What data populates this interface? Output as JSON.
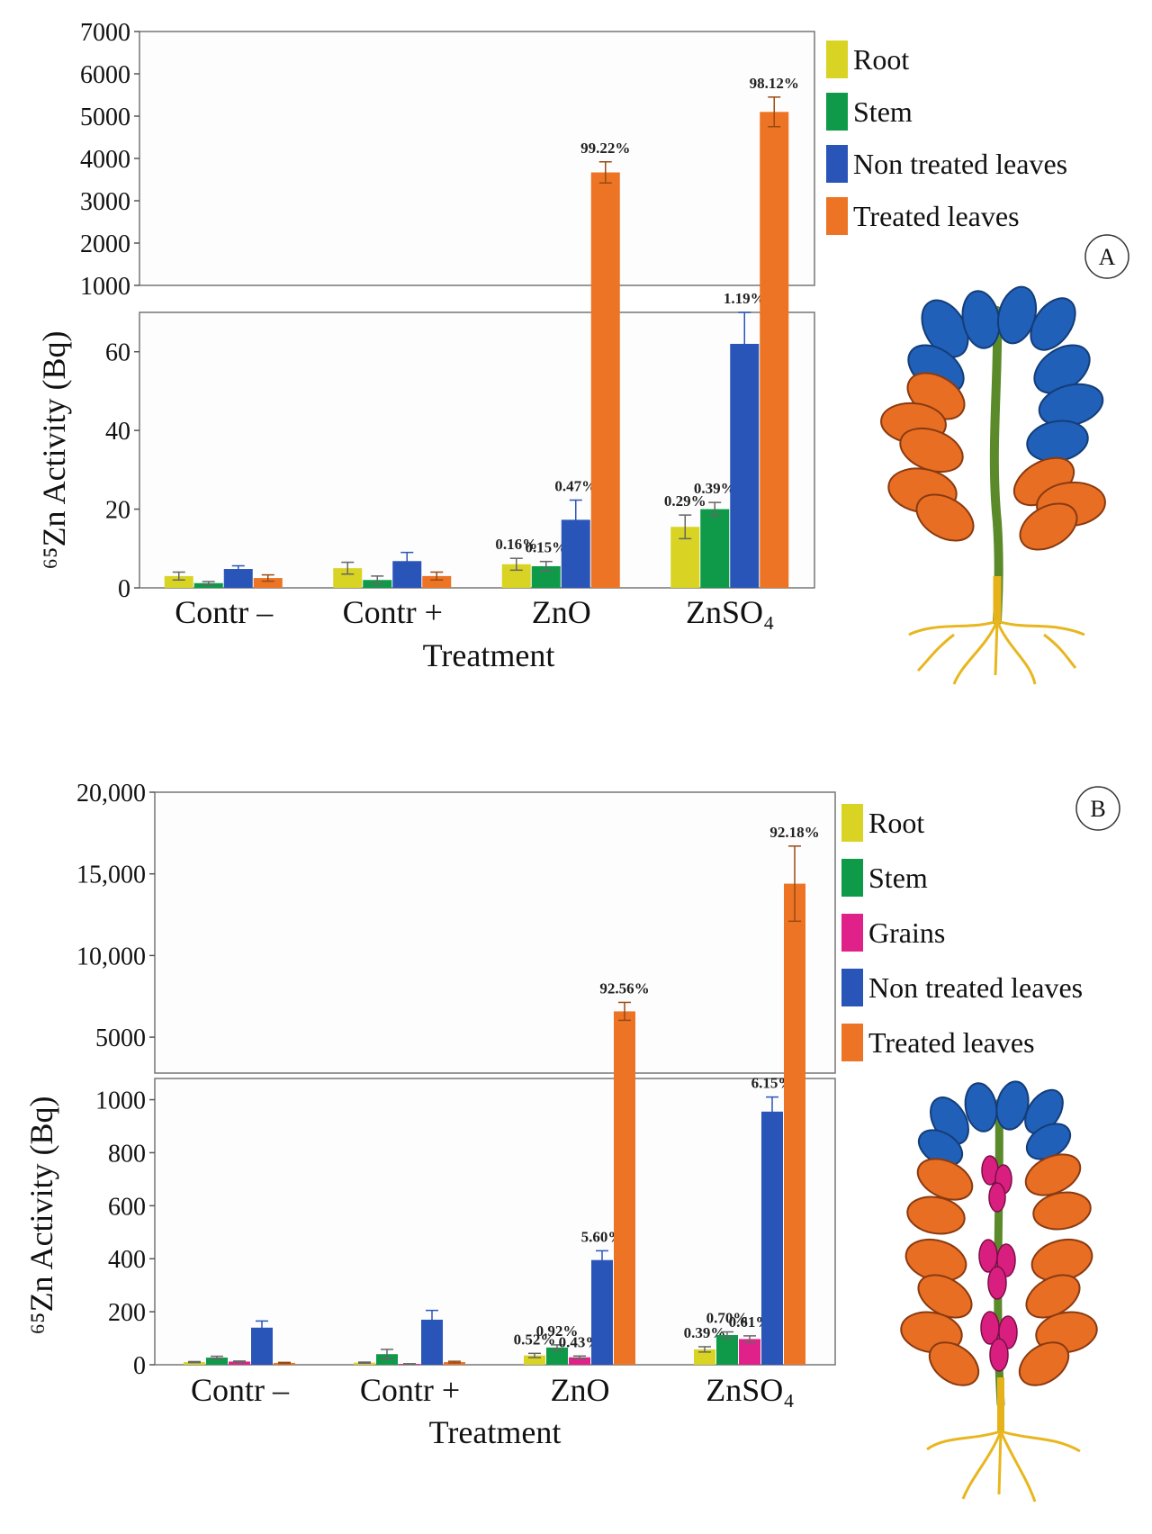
{
  "chart_data": [
    {
      "type": "bar",
      "panel": "A",
      "categories": [
        "Contr –",
        "Contr +",
        "ZnO",
        "ZnSO₄"
      ],
      "xlabel": "Treatment",
      "ylabel": "⁶⁵Zn Activity (Bq)",
      "broken_axis": {
        "lower_ylim": [
          0,
          70
        ],
        "upper_ylim": [
          1000,
          7000
        ]
      },
      "lower_ticks": [
        "0",
        "20",
        "40",
        "60"
      ],
      "upper_ticks": [
        "1000",
        "2000",
        "3000",
        "4000",
        "5000",
        "6000",
        "7000"
      ],
      "series": [
        {
          "name": "Root",
          "color": "#d9d423",
          "values": [
            3,
            5,
            6,
            15.5
          ],
          "errors": [
            1,
            1.5,
            1.5,
            3
          ],
          "labels": [
            "",
            "",
            "0.16%",
            "0.29%"
          ]
        },
        {
          "name": "Stem",
          "color": "#0e9a48",
          "values": [
            1.2,
            2,
            5.5,
            20
          ],
          "errors": [
            0.4,
            1,
            1.2,
            1.7
          ],
          "labels": [
            "",
            "",
            "0.15%",
            "0.39%"
          ]
        },
        {
          "name": "Non treated leaves",
          "color": "#2a55b8",
          "values": [
            4.8,
            6.8,
            17.3,
            62
          ],
          "errors": [
            0.8,
            2.2,
            5,
            8
          ],
          "labels": [
            "",
            "",
            "0.47%",
            "1.19%"
          ]
        },
        {
          "name": "Treated leaves",
          "color": "#ec7424",
          "values": [
            2.5,
            3,
            3670,
            5100
          ],
          "errors": [
            0.8,
            1,
            250,
            350
          ],
          "labels": [
            "",
            "",
            "99.22%",
            "98.12%"
          ]
        }
      ]
    },
    {
      "type": "bar",
      "panel": "B",
      "categories": [
        "Contr –",
        "Contr +",
        "ZnO",
        "ZnSO₄"
      ],
      "xlabel": "Treatment",
      "ylabel": "⁶⁵Zn Activity (Bq)",
      "broken_axis": {
        "lower_ylim": [
          0,
          1080
        ],
        "upper_ylim": [
          2800,
          20000
        ]
      },
      "lower_ticks": [
        "0",
        "200",
        "400",
        "600",
        "800",
        "1000"
      ],
      "upper_ticks": [
        "5000",
        "10,000",
        "15,000",
        "20,000"
      ],
      "series": [
        {
          "name": "Root",
          "color": "#d9d423",
          "values": [
            10,
            8,
            35,
            58
          ],
          "errors": [
            2,
            2,
            8,
            10
          ],
          "labels": [
            "",
            "",
            "0.52%",
            "0.39%"
          ]
        },
        {
          "name": "Stem",
          "color": "#0e9a48",
          "values": [
            27,
            40,
            65,
            112
          ],
          "errors": [
            5,
            18,
            10,
            12
          ],
          "labels": [
            "",
            "",
            "0.92%",
            "0.70%"
          ]
        },
        {
          "name": "Grains",
          "color": "#e0218a",
          "values": [
            12,
            3,
            28,
            97
          ],
          "errors": [
            2,
            1,
            5,
            12
          ],
          "labels": [
            "",
            "",
            "0.43%",
            "0.61%"
          ]
        },
        {
          "name": "Non treated leaves",
          "color": "#2a55b8",
          "values": [
            140,
            170,
            395,
            955
          ],
          "errors": [
            25,
            35,
            35,
            55
          ],
          "labels": [
            "",
            "",
            "5.60%",
            "6.15%"
          ]
        },
        {
          "name": "Treated leaves",
          "color": "#ec7424",
          "values": [
            7,
            10,
            6580,
            14400
          ],
          "errors": [
            2,
            3,
            550,
            2300
          ],
          "labels": [
            "",
            "",
            "92.56%",
            "92.18%"
          ]
        }
      ]
    }
  ],
  "panels": [
    "A",
    "B"
  ]
}
